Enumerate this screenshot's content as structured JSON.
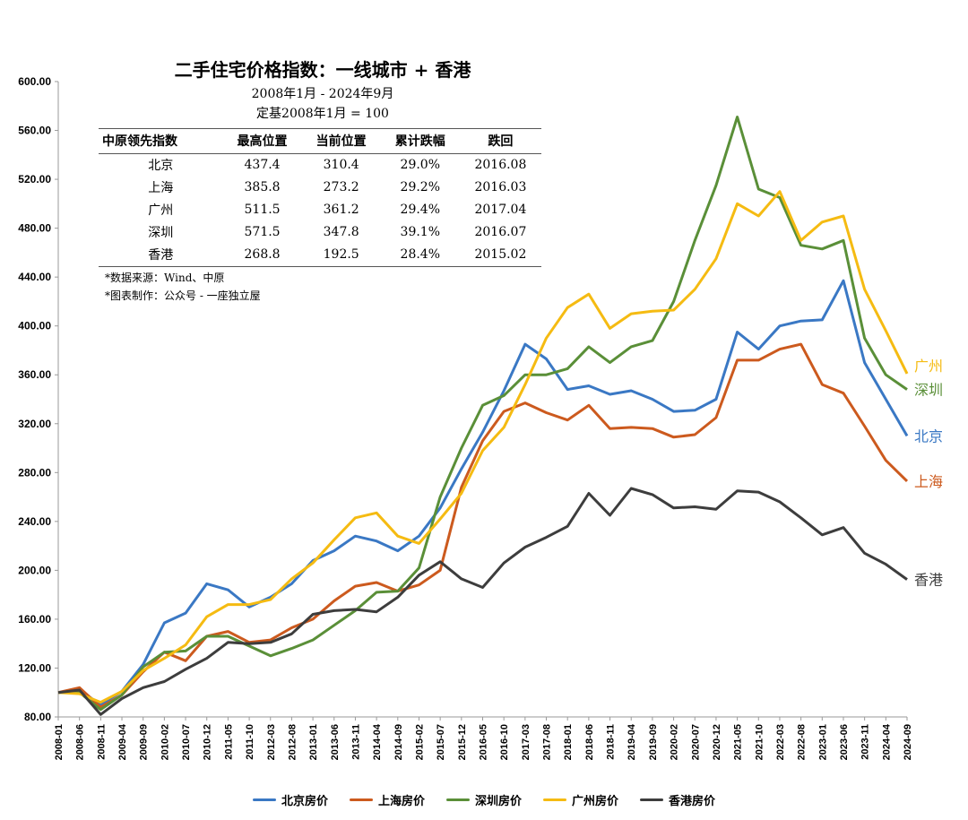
{
  "chart_data": {
    "type": "line",
    "title": "二手住宅价格指数：一线城市 + 香港",
    "subtitle": [
      "2008年1月 - 2024年9月",
      "定基2008年1月 = 100"
    ],
    "ylim": [
      80,
      600
    ],
    "yticks": [
      "80.00",
      "120.00",
      "160.00",
      "200.00",
      "240.00",
      "280.00",
      "320.00",
      "360.00",
      "400.00",
      "440.00",
      "480.00",
      "520.00",
      "560.00",
      "600.00"
    ],
    "grid": false,
    "legend_position": "bottom",
    "x": [
      "2008-01",
      "2008-06",
      "2008-11",
      "2009-04",
      "2009-09",
      "2010-02",
      "2010-07",
      "2010-12",
      "2011-05",
      "2011-10",
      "2012-03",
      "2012-08",
      "2013-01",
      "2013-06",
      "2013-11",
      "2014-04",
      "2014-09",
      "2015-02",
      "2015-07",
      "2015-12",
      "2016-05",
      "2016-10",
      "2017-03",
      "2017-08",
      "2018-01",
      "2018-06",
      "2018-11",
      "2019-04",
      "2019-09",
      "2020-02",
      "2020-07",
      "2020-12",
      "2021-05",
      "2021-10",
      "2022-03",
      "2022-08",
      "2023-01",
      "2023-06",
      "2023-11",
      "2024-04",
      "2024-09"
    ],
    "series": [
      {
        "name": "北京房价",
        "end_label": "北京",
        "color": "#3a78c4",
        "values": [
          100,
          102,
          90,
          101,
          123,
          157,
          165,
          189,
          184,
          170,
          178,
          189,
          208,
          216,
          228,
          224,
          216,
          228,
          251,
          283,
          313,
          347,
          385,
          373,
          348,
          351,
          344,
          347,
          340,
          330,
          331,
          340,
          395,
          381,
          400,
          404,
          405,
          437,
          370,
          340,
          310
        ]
      },
      {
        "name": "上海房价",
        "end_label": "上海",
        "color": "#cc5a1e",
        "values": [
          100,
          104,
          88,
          98,
          117,
          133,
          126,
          146,
          150,
          141,
          143,
          153,
          160,
          175,
          187,
          190,
          183,
          188,
          200,
          268,
          306,
          330,
          337,
          329,
          323,
          335,
          316,
          317,
          316,
          309,
          311,
          325,
          372,
          372,
          381,
          385,
          352,
          345,
          318,
          290,
          273
        ]
      },
      {
        "name": "深圳房价",
        "end_label": "深圳",
        "color": "#5a8f38",
        "values": [
          100,
          100,
          86,
          98,
          121,
          133,
          134,
          146,
          146,
          138,
          130,
          136,
          143,
          155,
          167,
          182,
          183,
          202,
          260,
          300,
          335,
          343,
          360,
          360,
          365,
          383,
          370,
          383,
          388,
          420,
          470,
          515,
          571,
          512,
          505,
          466,
          463,
          470,
          390,
          360,
          348
        ]
      },
      {
        "name": "广州房价",
        "end_label": "广州",
        "color": "#f5bb12",
        "values": [
          100,
          99,
          92,
          101,
          118,
          128,
          139,
          162,
          172,
          172,
          176,
          193,
          206,
          225,
          243,
          247,
          228,
          222,
          242,
          263,
          298,
          317,
          352,
          390,
          415,
          426,
          398,
          410,
          412,
          413,
          430,
          455,
          500,
          490,
          510,
          470,
          485,
          490,
          430,
          396,
          361
        ]
      },
      {
        "name": "香港房价",
        "end_label": "香港",
        "color": "#3d3d3d",
        "values": [
          100,
          102,
          82,
          95,
          104,
          109,
          119,
          128,
          141,
          140,
          141,
          148,
          164,
          167,
          168,
          166,
          178,
          196,
          207,
          193,
          186,
          206,
          219,
          227,
          236,
          263,
          245,
          267,
          262,
          251,
          252,
          250,
          265,
          264,
          256,
          243,
          229,
          235,
          214,
          205,
          192.5
        ]
      }
    ]
  },
  "table": {
    "headers": [
      "中原领先指数",
      "最高位置",
      "当前位置",
      "累计跌幅",
      "跌回"
    ],
    "rows": [
      [
        "北京",
        "437.4",
        "310.4",
        "29.0%",
        "2016.08"
      ],
      [
        "上海",
        "385.8",
        "273.2",
        "29.2%",
        "2016.03"
      ],
      [
        "广州",
        "511.5",
        "361.2",
        "29.4%",
        "2017.04"
      ],
      [
        "深圳",
        "571.5",
        "347.8",
        "39.1%",
        "2016.07"
      ],
      [
        "香港",
        "268.8",
        "192.5",
        "28.4%",
        "2015.02"
      ]
    ]
  },
  "notes": [
    "*数据来源：Wind、中原",
    "*图表制作：公众号 - 一座独立屋"
  ]
}
